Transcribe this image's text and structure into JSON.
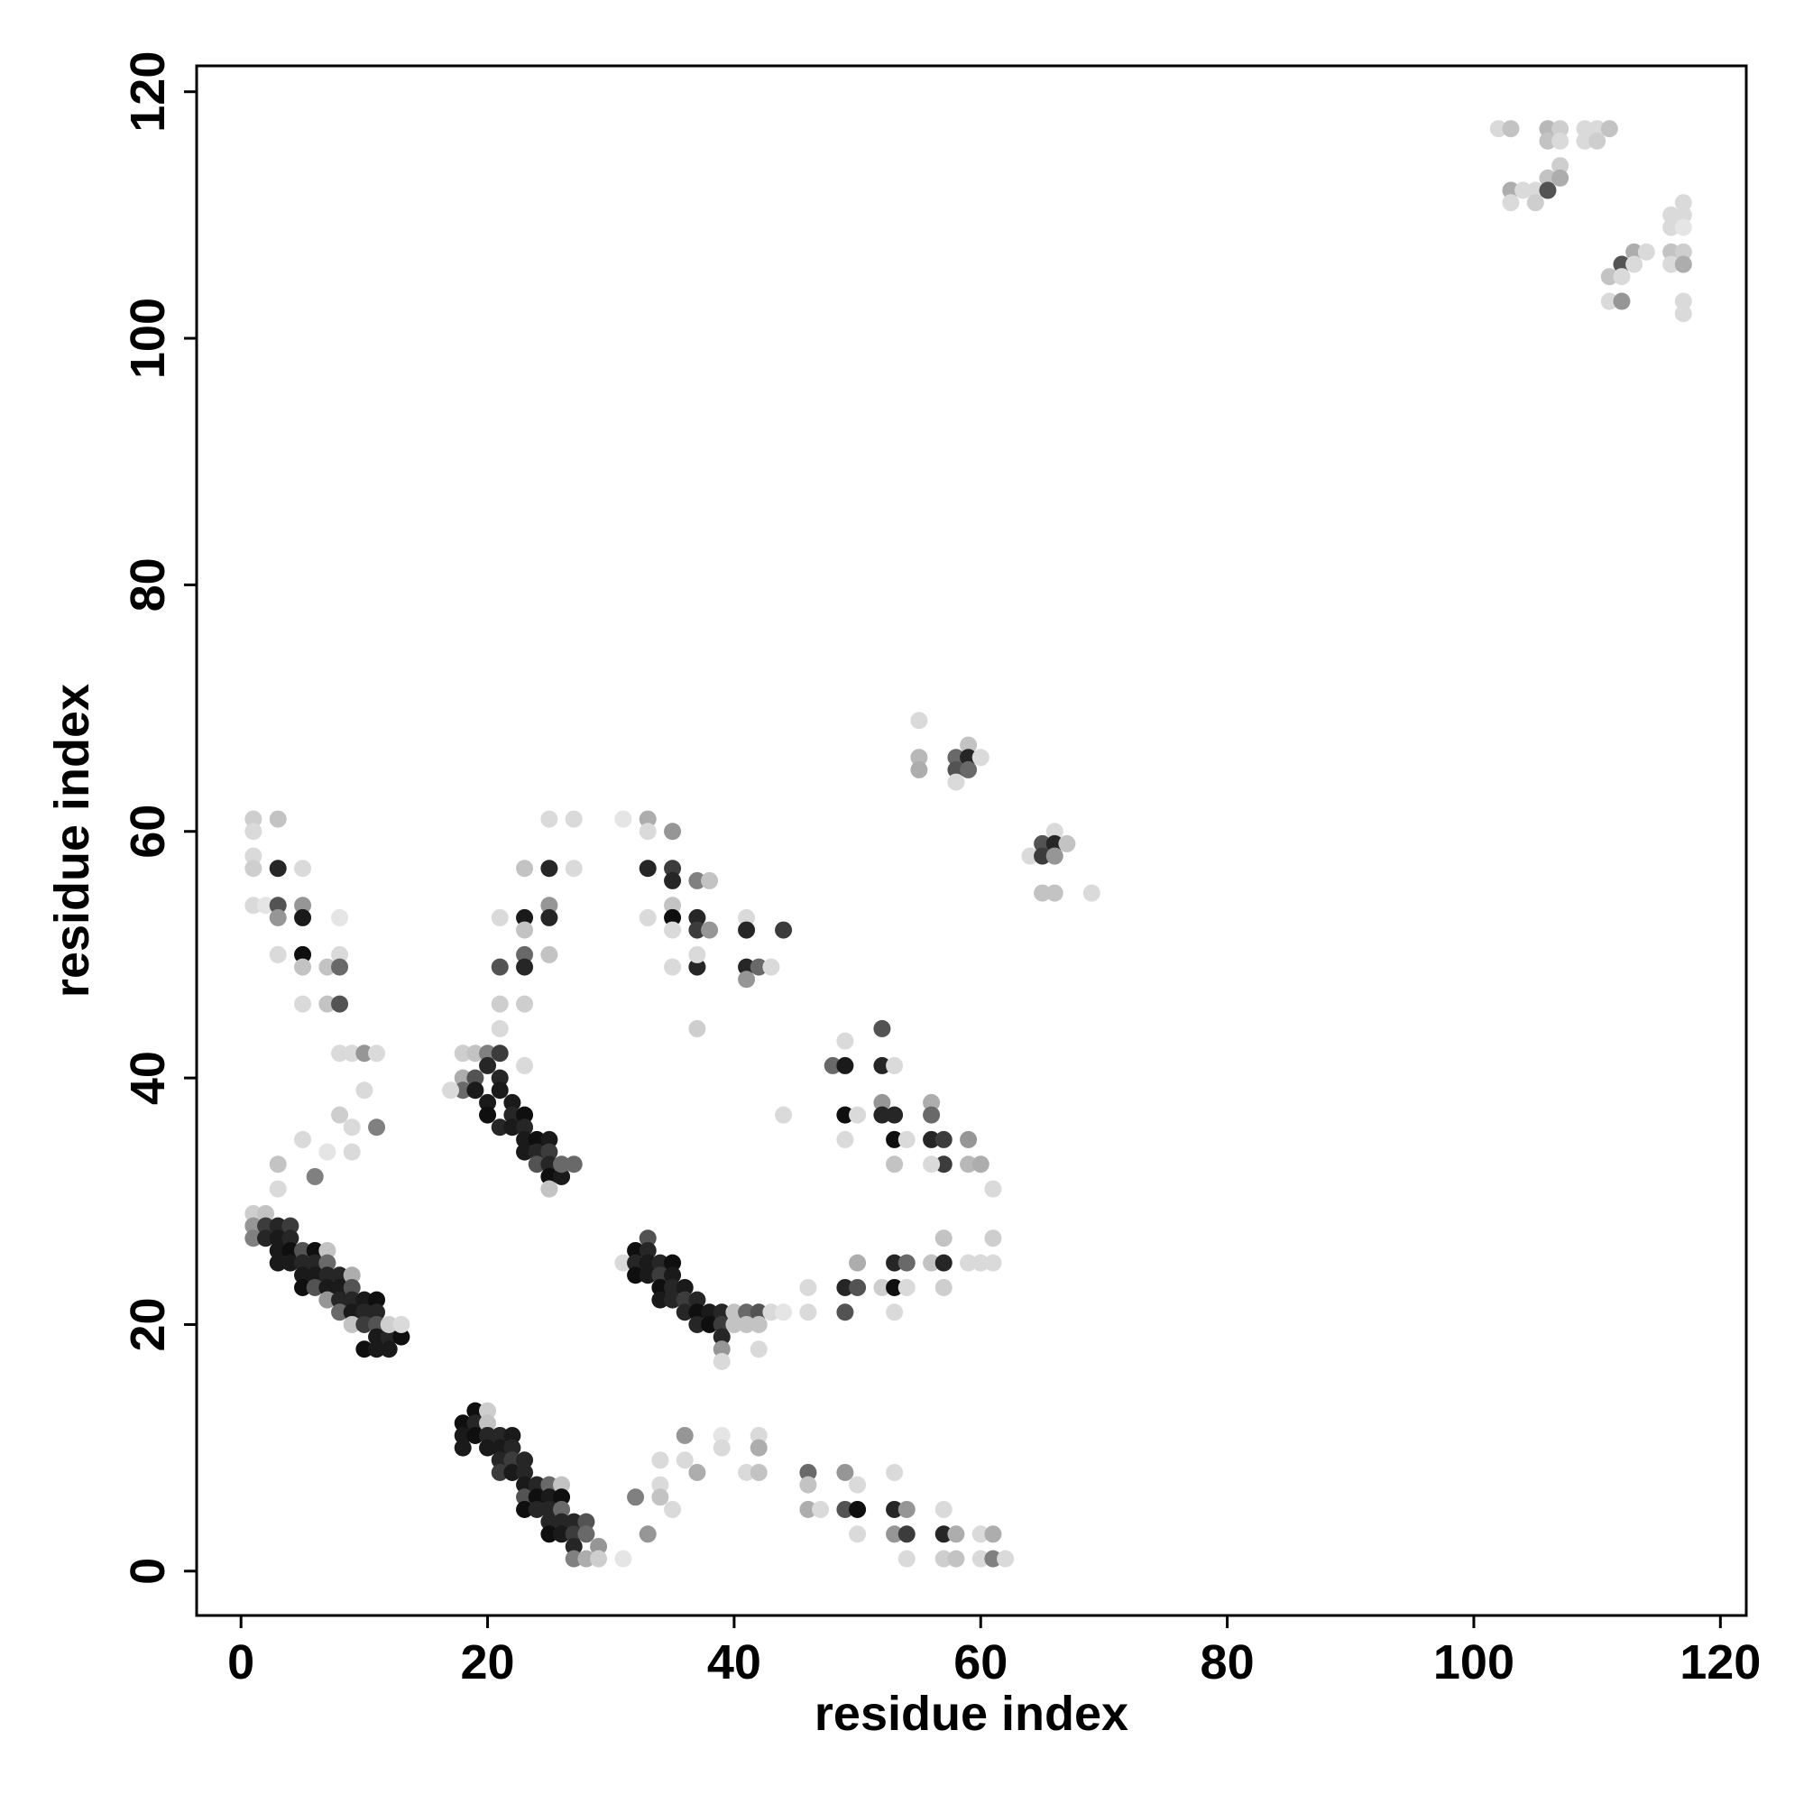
{
  "chart_data": {
    "type": "scatter",
    "xlabel": "residue index",
    "ylabel": "residue index",
    "xlim": [
      -3.6,
      122.1
    ],
    "ylim": [
      -3.6,
      122.1
    ],
    "xticks": [
      0,
      20,
      40,
      60,
      80,
      100,
      120
    ],
    "yticks": [
      0,
      20,
      40,
      60,
      80,
      100,
      120
    ],
    "color_low": "#f0f0f0",
    "color_high": "#0f0f0f",
    "x": [
      1,
      1,
      1,
      2,
      2,
      2,
      3,
      3,
      3,
      3,
      4,
      4,
      4,
      4,
      5,
      5,
      5,
      5,
      6,
      6,
      6,
      6,
      7,
      7,
      7,
      7,
      7,
      8,
      8,
      8,
      8,
      9,
      9,
      9,
      9,
      9,
      10,
      10,
      10,
      10,
      11,
      11,
      11,
      11,
      11,
      12,
      12,
      12,
      13,
      13,
      18,
      18,
      18,
      19,
      19,
      19,
      20,
      20,
      20,
      20,
      21,
      21,
      21,
      21,
      22,
      22,
      22,
      22,
      23,
      23,
      23,
      23,
      23,
      24,
      24,
      24,
      25,
      25,
      25,
      25,
      25,
      26,
      26,
      26,
      26,
      26,
      27,
      27,
      27,
      27,
      28,
      28,
      28,
      29,
      29,
      18,
      18,
      18,
      19,
      19,
      19,
      20,
      20,
      20,
      20,
      21,
      21,
      21,
      21,
      22,
      22,
      22,
      23,
      23,
      23,
      23,
      24,
      24,
      24,
      25,
      25,
      25,
      25,
      26,
      26,
      27,
      25,
      17,
      31,
      32,
      32,
      32,
      33,
      33,
      33,
      33,
      34,
      34,
      34,
      34,
      35,
      35,
      35,
      35,
      36,
      36,
      36,
      37,
      37,
      37,
      38,
      38,
      39,
      39,
      39,
      39,
      40,
      40,
      41,
      41,
      42,
      42,
      42,
      39,
      43,
      1,
      1,
      1,
      1,
      1,
      2,
      3,
      3,
      3,
      3,
      3,
      5,
      5,
      5,
      5,
      5,
      5,
      7,
      8,
      8,
      7,
      8,
      8,
      3,
      3,
      6,
      5,
      7,
      8,
      8,
      9,
      10,
      11,
      9,
      9,
      10,
      11,
      21,
      21,
      21,
      21,
      23,
      23,
      23,
      23,
      23,
      23,
      23,
      25,
      25,
      25,
      25,
      25,
      27,
      27,
      31,
      33,
      33,
      33,
      33,
      35,
      35,
      35,
      35,
      35,
      35,
      35,
      37,
      37,
      37,
      37,
      37,
      38,
      38,
      37,
      41,
      41,
      41,
      41,
      42,
      43,
      44,
      44,
      48,
      49,
      49,
      49,
      49,
      50,
      52,
      52,
      52,
      52,
      53,
      53,
      53,
      53,
      54,
      56,
      56,
      56,
      57,
      57,
      59,
      59,
      60,
      61,
      56,
      44,
      46,
      46,
      49,
      49,
      50,
      50,
      52,
      53,
      53,
      53,
      54,
      54,
      56,
      57,
      57,
      57,
      59,
      60,
      61,
      61,
      31,
      32,
      33,
      34,
      34,
      34,
      35,
      36,
      36,
      37,
      39,
      39,
      41,
      42,
      42,
      42,
      46,
      46,
      46,
      47,
      49,
      49,
      50,
      50,
      50,
      53,
      53,
      53,
      54,
      54,
      54,
      57,
      57,
      57,
      58,
      58,
      60,
      60,
      61,
      61,
      62,
      55,
      55,
      55,
      58,
      58,
      58,
      59,
      59,
      59,
      60,
      64,
      65,
      65,
      65,
      66,
      66,
      66,
      66,
      67,
      69,
      102,
      103,
      103,
      103,
      104,
      105,
      105,
      106,
      106,
      106,
      106,
      107,
      107,
      107,
      107,
      109,
      109,
      110,
      110,
      111,
      111,
      111,
      112,
      112,
      112,
      113,
      113,
      114,
      116,
      116,
      116,
      116,
      117,
      117,
      117,
      117,
      117,
      117,
      117
    ],
    "values": [
      29,
      28,
      27,
      29,
      28,
      27,
      28,
      27,
      26,
      25,
      28,
      27,
      26,
      25,
      26,
      25,
      24,
      23,
      26,
      25,
      24,
      23,
      26,
      25,
      24,
      23,
      22,
      24,
      23,
      22,
      21,
      24,
      23,
      22,
      21,
      20,
      22,
      21,
      20,
      18,
      22,
      21,
      20,
      19,
      18,
      19,
      18,
      20,
      19,
      20,
      12,
      11,
      10,
      13,
      12,
      11,
      13,
      12,
      11,
      10,
      11,
      10,
      9,
      8,
      11,
      10,
      9,
      8,
      9,
      8,
      7,
      6,
      5,
      7,
      6,
      5,
      7,
      6,
      5,
      4,
      3,
      7,
      6,
      5,
      4,
      3,
      4,
      3,
      2,
      1,
      4,
      3,
      1,
      2,
      1,
      42,
      40,
      39,
      42,
      40,
      39,
      42,
      41,
      38,
      37,
      42,
      40,
      39,
      36,
      38,
      37,
      36,
      37,
      36,
      35,
      34,
      35,
      34,
      33,
      35,
      34,
      33,
      32,
      32,
      33,
      33,
      31,
      39,
      25,
      26,
      25,
      24,
      27,
      26,
      25,
      24,
      25,
      24,
      23,
      22,
      25,
      24,
      23,
      22,
      23,
      22,
      21,
      22,
      21,
      20,
      21,
      20,
      21,
      20,
      19,
      18,
      20,
      21,
      21,
      20,
      21,
      20,
      18,
      17,
      21,
      61,
      60,
      58,
      57,
      54,
      54,
      61,
      57,
      54,
      53,
      50,
      57,
      54,
      53,
      50,
      49,
      46,
      49,
      50,
      49,
      46,
      46,
      53,
      33,
      31,
      32,
      35,
      34,
      37,
      42,
      42,
      42,
      42,
      36,
      34,
      39,
      36,
      53,
      49,
      46,
      44,
      57,
      53,
      52,
      50,
      49,
      46,
      41,
      61,
      57,
      54,
      53,
      50,
      61,
      57,
      61,
      61,
      57,
      60,
      53,
      60,
      57,
      56,
      54,
      53,
      52,
      49,
      56,
      53,
      52,
      49,
      50,
      56,
      52,
      44,
      53,
      52,
      49,
      48,
      49,
      49,
      52,
      37,
      41,
      43,
      41,
      37,
      35,
      37,
      44,
      41,
      38,
      37,
      41,
      37,
      35,
      33,
      35,
      38,
      37,
      35,
      35,
      33,
      35,
      33,
      33,
      31,
      33,
      21,
      23,
      21,
      23,
      21,
      25,
      23,
      23,
      25,
      23,
      21,
      25,
      23,
      25,
      27,
      25,
      23,
      25,
      25,
      27,
      25,
      1,
      6,
      3,
      9,
      7,
      6,
      5,
      11,
      9,
      8,
      11,
      10,
      8,
      11,
      10,
      8,
      8,
      7,
      5,
      5,
      8,
      5,
      7,
      5,
      3,
      8,
      5,
      3,
      5,
      3,
      1,
      5,
      3,
      1,
      3,
      1,
      3,
      1,
      3,
      1,
      1,
      69,
      66,
      65,
      66,
      65,
      64,
      67,
      66,
      65,
      66,
      58,
      59,
      58,
      55,
      60,
      59,
      58,
      55,
      59,
      55,
      117,
      117,
      112,
      111,
      112,
      112,
      111,
      117,
      116,
      113,
      112,
      117,
      116,
      114,
      113,
      117,
      116,
      117,
      116,
      117,
      105,
      103,
      106,
      105,
      103,
      107,
      106,
      107,
      110,
      109,
      107,
      106,
      111,
      110,
      109,
      107,
      106,
      103,
      102
    ],
    "intensity": [
      0.15,
      0.4,
      0.5,
      0.2,
      0.8,
      0.9,
      0.9,
      0.95,
      0.95,
      0.95,
      0.8,
      0.9,
      1,
      0.95,
      0.7,
      0.9,
      0.95,
      1,
      1,
      0.9,
      0.95,
      0.7,
      0.2,
      0.6,
      0.9,
      0.95,
      0.4,
      0.9,
      0.95,
      0.9,
      0.6,
      0.3,
      0.7,
      0.9,
      0.95,
      0.2,
      0.95,
      0.9,
      0.8,
      1,
      1,
      0.9,
      0.7,
      0.95,
      0.95,
      0.9,
      0.95,
      0.15,
      1,
      0.1,
      1,
      0.95,
      0.95,
      1,
      0.9,
      1,
      0.15,
      0.2,
      0.9,
      0.95,
      0.9,
      0.95,
      0.9,
      0.8,
      0.95,
      0.9,
      0.8,
      0.95,
      0.9,
      0.9,
      0.95,
      0.7,
      1,
      0.9,
      1,
      0.9,
      0.6,
      0.95,
      0.9,
      0.9,
      1,
      0.2,
      1,
      0.6,
      0.9,
      0.95,
      0.9,
      0.8,
      0.9,
      0.5,
      0.7,
      0.6,
      0.3,
      0.4,
      0.15,
      0.15,
      0.3,
      0.6,
      0.2,
      0.7,
      0.95,
      0.5,
      0.9,
      0.95,
      1,
      0.8,
      0.9,
      0.95,
      0.9,
      0.95,
      0.9,
      0.95,
      1,
      0.9,
      0.95,
      0.95,
      1,
      0.9,
      0.7,
      0.95,
      0.8,
      0.9,
      1,
      0.95,
      0.6,
      0.6,
      0.2,
      0.1,
      0.1,
      1,
      0.9,
      1,
      0.7,
      0.9,
      0.95,
      0.95,
      0.9,
      0.8,
      1,
      0.95,
      1,
      0.95,
      0.9,
      0.9,
      0.95,
      0.8,
      0.9,
      0.9,
      1,
      0.9,
      0.95,
      1,
      0.9,
      0.8,
      0.9,
      0.4,
      0.2,
      0.2,
      0.6,
      0.2,
      0.7,
      0.2,
      0.1,
      0.1,
      0.1,
      0.15,
      0.1,
      0.1,
      0.15,
      0.1,
      0.05,
      0.2,
      0.9,
      0.7,
      0.4,
      0.1,
      0.1,
      0.4,
      0.95,
      1,
      0.2,
      0.1,
      0.2,
      0.1,
      0.6,
      0.2,
      0.7,
      0.05,
      0.2,
      0.1,
      0.5,
      0.1,
      0.05,
      0.15,
      0.1,
      0.1,
      0.4,
      0.1,
      0.1,
      0.1,
      0.1,
      0.5,
      0.1,
      0.7,
      0.15,
      0.1,
      0.2,
      0.95,
      0.2,
      0.6,
      0.9,
      0.15,
      0.1,
      0.1,
      0.9,
      0.4,
      0.9,
      0.2,
      0.1,
      0.1,
      0.05,
      0.3,
      0.9,
      0.1,
      0.1,
      0.4,
      0.8,
      0.9,
      0.2,
      1,
      0.1,
      0.1,
      0.5,
      0.9,
      0.8,
      0.9,
      0.1,
      0.2,
      0.4,
      0.15,
      0.1,
      0.9,
      0.9,
      0.4,
      0.6,
      0.1,
      0.8,
      0.1,
      0.6,
      0.1,
      0.95,
      1,
      0.1,
      0.1,
      0.7,
      0.9,
      0.4,
      0.9,
      0.1,
      0.9,
      1,
      0.2,
      0.1,
      0.3,
      0.6,
      0.9,
      0.8,
      0.8,
      0.4,
      0.25,
      0.3,
      0.1,
      0.1,
      0.05,
      0.1,
      0.1,
      0.9,
      0.7,
      0.3,
      0.7,
      0.15,
      0.9,
      1,
      0.1,
      0.6,
      0.1,
      0.2,
      0.2,
      0.9,
      0.15,
      0.1,
      0.1,
      0.15,
      0.1,
      0.05,
      0.5,
      0.4,
      0.1,
      0.1,
      0.2,
      0.1,
      0.4,
      0.1,
      0.3,
      0.05,
      0.1,
      0.1,
      0.1,
      0.3,
      0.2,
      0.6,
      0.2,
      0.3,
      0.1,
      0.4,
      0.7,
      0.1,
      1,
      0.1,
      0.1,
      0.9,
      0.4,
      0.4,
      0.8,
      0.1,
      0.1,
      0.9,
      0.15,
      0.3,
      0.2,
      0.1,
      0.1,
      0.3,
      0.5,
      0.1,
      0.1,
      0.25,
      0.3,
      0.6,
      0.7,
      0.1,
      0.2,
      0.9,
      0.6,
      0.1,
      0.1,
      0.7,
      0.8,
      0.2,
      0.1,
      0.9,
      0.4,
      0.2,
      0.2,
      0.1,
      0.1,
      0.2,
      0.3,
      0.1,
      0.1,
      0.1,
      0.15,
      0.25,
      0.2,
      0.2,
      0.7,
      0.15,
      0.1,
      0.15,
      0.3,
      0.1,
      0.1,
      0.1,
      0.15,
      0.2,
      0.2,
      0.1,
      0.7,
      0.1,
      0.4,
      0.3,
      0.1,
      0.1,
      0.1,
      0.1,
      0.2,
      0.1,
      0.1,
      0.1,
      0.05,
      0.15,
      0.3,
      0.1,
      0.1
    ]
  }
}
